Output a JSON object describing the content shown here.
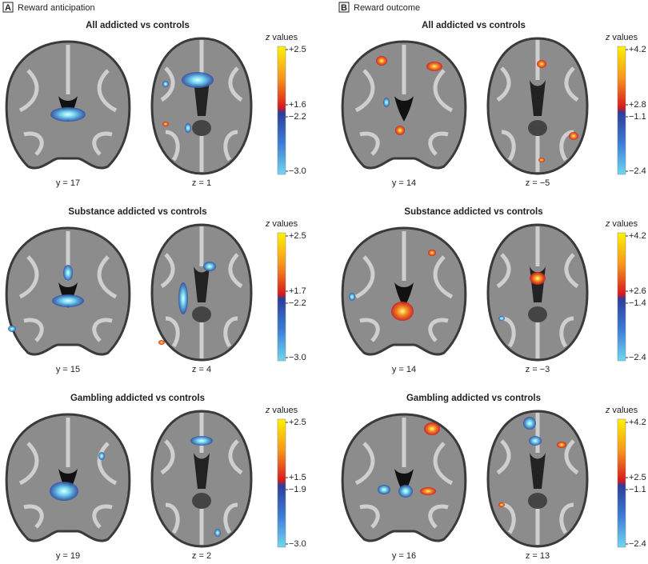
{
  "panels": [
    {
      "letter": "A",
      "title": "Reward anticipation",
      "rows": [
        {
          "title": "All addicted vs controls",
          "slices": [
            "y = 17",
            "z = 1"
          ],
          "legend": {
            "symbol": "z",
            "word": "values",
            "ticks": [
              "+2.5",
              "+1.6",
              "−2.2",
              "−3.0"
            ]
          }
        },
        {
          "title": "Substance addicted vs controls",
          "slices": [
            "y = 15",
            "z = 4"
          ],
          "legend": {
            "symbol": "z",
            "word": "values",
            "ticks": [
              "+2.5",
              "+1.7",
              "−2.2",
              "−3.0"
            ]
          }
        },
        {
          "title": "Gambling addicted vs controls",
          "slices": [
            "y = 19",
            "z = 2"
          ],
          "legend": {
            "symbol": "z",
            "word": "values",
            "ticks": [
              "+2.5",
              "+1.5",
              "−1.9",
              "−3.0"
            ]
          }
        }
      ]
    },
    {
      "letter": "B",
      "title": "Reward outcome",
      "rows": [
        {
          "title": "All addicted vs controls",
          "slices": [
            "y = 14",
            "z = −5"
          ],
          "legend": {
            "symbol": "z",
            "word": "values",
            "ticks": [
              "+4.2",
              "+2.8",
              "−1.1",
              "−2.4"
            ]
          }
        },
        {
          "title": "Substance addicted vs controls",
          "slices": [
            "y = 14",
            "z = −3"
          ],
          "legend": {
            "symbol": "z",
            "word": "values",
            "ticks": [
              "+4.2",
              "+2.6",
              "−1.4",
              "−2.4"
            ]
          }
        },
        {
          "title": "Gambling addicted vs controls",
          "slices": [
            "y = 16",
            "z = 13"
          ],
          "legend": {
            "symbol": "z",
            "word": "values",
            "ticks": [
              "+4.2",
              "+2.5",
              "−1.1",
              "−2.4"
            ]
          }
        }
      ]
    }
  ]
}
